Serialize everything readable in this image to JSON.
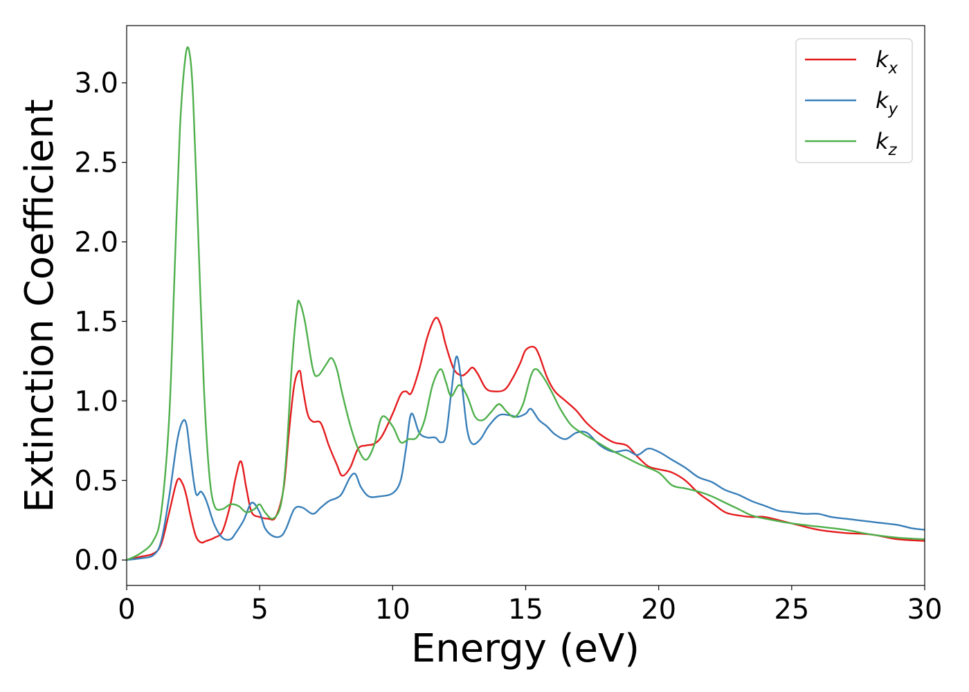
{
  "chart_data": {
    "type": "line",
    "xlabel": "Energy (eV)",
    "ylabel": "Extinction Coefficient",
    "xlim": [
      0,
      30
    ],
    "ylim": [
      -0.16,
      3.36
    ],
    "xticks": [
      0,
      5,
      10,
      15,
      20,
      25,
      30
    ],
    "xtick_labels": [
      "0",
      "5",
      "10",
      "15",
      "20",
      "25",
      "30"
    ],
    "yticks": [
      0.0,
      0.5,
      1.0,
      1.5,
      2.0,
      2.5,
      3.0
    ],
    "ytick_labels": [
      "0.0",
      "0.5",
      "1.0",
      "1.5",
      "2.0",
      "2.5",
      "3.0"
    ],
    "grid": false,
    "legend": {
      "position": "top-right"
    },
    "series": [
      {
        "name": "kx",
        "sub": "x",
        "color": "#e41a1c",
        "x": [
          0,
          0.5,
          1.0,
          1.3,
          1.6,
          1.9,
          2.1,
          2.25,
          2.4,
          2.6,
          2.8,
          3.0,
          3.3,
          3.6,
          3.9,
          4.1,
          4.3,
          4.5,
          4.7,
          5.0,
          5.3,
          5.6,
          5.9,
          6.1,
          6.3,
          6.5,
          6.6,
          6.8,
          7.0,
          7.3,
          7.6,
          7.9,
          8.1,
          8.4,
          8.7,
          9.0,
          9.3,
          9.6,
          10.0,
          10.3,
          10.5,
          10.7,
          11.0,
          11.3,
          11.6,
          11.8,
          12.0,
          12.3,
          12.6,
          12.8,
          13.0,
          13.2,
          13.5,
          13.8,
          14.2,
          14.5,
          14.8,
          15.0,
          15.3,
          15.5,
          15.8,
          16.1,
          16.5,
          16.9,
          17.3,
          17.8,
          18.3,
          18.8,
          19.2,
          19.6,
          20.0,
          20.5,
          21.0,
          21.5,
          22.0,
          22.5,
          23.0,
          23.5,
          24.0,
          25.0,
          26.0,
          27.0,
          28.0,
          29.0,
          30.0
        ],
        "y": [
          0.0,
          0.02,
          0.04,
          0.1,
          0.3,
          0.5,
          0.48,
          0.4,
          0.28,
          0.15,
          0.11,
          0.12,
          0.14,
          0.18,
          0.35,
          0.52,
          0.62,
          0.45,
          0.3,
          0.27,
          0.26,
          0.27,
          0.45,
          0.8,
          1.1,
          1.19,
          1.1,
          0.92,
          0.87,
          0.86,
          0.72,
          0.6,
          0.53,
          0.58,
          0.7,
          0.72,
          0.73,
          0.78,
          0.92,
          1.04,
          1.06,
          1.05,
          1.2,
          1.4,
          1.52,
          1.48,
          1.35,
          1.2,
          1.16,
          1.18,
          1.21,
          1.17,
          1.08,
          1.06,
          1.07,
          1.14,
          1.24,
          1.32,
          1.34,
          1.29,
          1.15,
          1.06,
          1.0,
          0.94,
          0.86,
          0.79,
          0.74,
          0.72,
          0.65,
          0.59,
          0.57,
          0.55,
          0.5,
          0.42,
          0.36,
          0.3,
          0.28,
          0.27,
          0.27,
          0.23,
          0.19,
          0.17,
          0.16,
          0.13,
          0.12
        ]
      },
      {
        "name": "ky",
        "sub": "y",
        "color": "#377eb8",
        "x": [
          0,
          0.5,
          1.0,
          1.3,
          1.6,
          1.9,
          2.1,
          2.25,
          2.4,
          2.6,
          2.8,
          3.0,
          3.3,
          3.6,
          3.9,
          4.1,
          4.4,
          4.7,
          5.0,
          5.2,
          5.5,
          5.8,
          6.0,
          6.3,
          6.6,
          7.0,
          7.3,
          7.6,
          7.9,
          8.1,
          8.4,
          8.6,
          8.8,
          9.1,
          9.5,
          10.0,
          10.3,
          10.5,
          10.7,
          11.0,
          11.3,
          11.6,
          11.8,
          12.0,
          12.2,
          12.4,
          12.6,
          12.8,
          13.0,
          13.3,
          13.6,
          14.0,
          14.4,
          14.7,
          15.0,
          15.2,
          15.5,
          15.8,
          16.1,
          16.5,
          16.9,
          17.3,
          17.8,
          18.3,
          18.8,
          19.2,
          19.6,
          20.0,
          20.5,
          21.0,
          21.5,
          22.0,
          22.5,
          23.0,
          23.5,
          24.0,
          24.5,
          25.0,
          25.5,
          26.0,
          26.5,
          27.0,
          27.5,
          28.0,
          28.5,
          29.0,
          29.5,
          30.0
        ],
        "y": [
          0.0,
          0.01,
          0.03,
          0.12,
          0.4,
          0.75,
          0.87,
          0.85,
          0.65,
          0.42,
          0.43,
          0.37,
          0.22,
          0.14,
          0.13,
          0.17,
          0.25,
          0.36,
          0.3,
          0.2,
          0.15,
          0.15,
          0.2,
          0.32,
          0.33,
          0.29,
          0.33,
          0.37,
          0.39,
          0.42,
          0.52,
          0.54,
          0.46,
          0.4,
          0.4,
          0.42,
          0.5,
          0.7,
          0.92,
          0.8,
          0.77,
          0.77,
          0.74,
          0.78,
          1.05,
          1.28,
          1.1,
          0.82,
          0.73,
          0.76,
          0.84,
          0.91,
          0.91,
          0.9,
          0.92,
          0.95,
          0.88,
          0.84,
          0.79,
          0.76,
          0.8,
          0.8,
          0.72,
          0.68,
          0.69,
          0.66,
          0.7,
          0.68,
          0.63,
          0.58,
          0.52,
          0.49,
          0.44,
          0.41,
          0.37,
          0.34,
          0.31,
          0.3,
          0.29,
          0.29,
          0.27,
          0.26,
          0.25,
          0.24,
          0.23,
          0.22,
          0.2,
          0.19
        ]
      },
      {
        "name": "kz",
        "sub": "z",
        "color": "#4daf4a",
        "x": [
          0,
          0.5,
          1.0,
          1.3,
          1.6,
          1.8,
          2.0,
          2.2,
          2.35,
          2.5,
          2.7,
          2.9,
          3.1,
          3.3,
          3.6,
          3.9,
          4.2,
          4.5,
          4.8,
          5.0,
          5.2,
          5.5,
          5.8,
          6.0,
          6.2,
          6.4,
          6.5,
          6.7,
          7.0,
          7.2,
          7.5,
          7.7,
          7.9,
          8.1,
          8.4,
          8.7,
          9.0,
          9.3,
          9.6,
          10.0,
          10.3,
          10.6,
          10.9,
          11.2,
          11.5,
          11.8,
          12.0,
          12.2,
          12.5,
          12.8,
          13.1,
          13.4,
          13.7,
          14.0,
          14.3,
          14.6,
          14.9,
          15.2,
          15.4,
          15.7,
          16.0,
          16.3,
          16.7,
          17.1,
          17.6,
          18.1,
          18.7,
          19.3,
          20.0,
          20.5,
          21.0,
          21.5,
          22.0,
          22.5,
          23.0,
          23.5,
          24.0,
          25.0,
          26.0,
          27.0,
          28.0,
          29.0,
          30.0
        ],
        "y": [
          0.0,
          0.04,
          0.12,
          0.3,
          0.9,
          1.8,
          2.7,
          3.15,
          3.2,
          2.9,
          2.0,
          1.1,
          0.55,
          0.34,
          0.32,
          0.35,
          0.34,
          0.3,
          0.32,
          0.35,
          0.3,
          0.26,
          0.35,
          0.65,
          1.2,
          1.58,
          1.62,
          1.5,
          1.2,
          1.16,
          1.23,
          1.27,
          1.2,
          1.05,
          0.85,
          0.7,
          0.63,
          0.72,
          0.9,
          0.84,
          0.74,
          0.76,
          0.77,
          0.88,
          1.1,
          1.2,
          1.12,
          1.03,
          1.1,
          1.03,
          0.9,
          0.88,
          0.93,
          0.98,
          0.93,
          0.9,
          0.98,
          1.16,
          1.2,
          1.14,
          1.05,
          0.95,
          0.85,
          0.8,
          0.75,
          0.7,
          0.65,
          0.6,
          0.55,
          0.47,
          0.45,
          0.43,
          0.4,
          0.36,
          0.32,
          0.28,
          0.26,
          0.23,
          0.21,
          0.19,
          0.16,
          0.14,
          0.13
        ]
      }
    ]
  }
}
